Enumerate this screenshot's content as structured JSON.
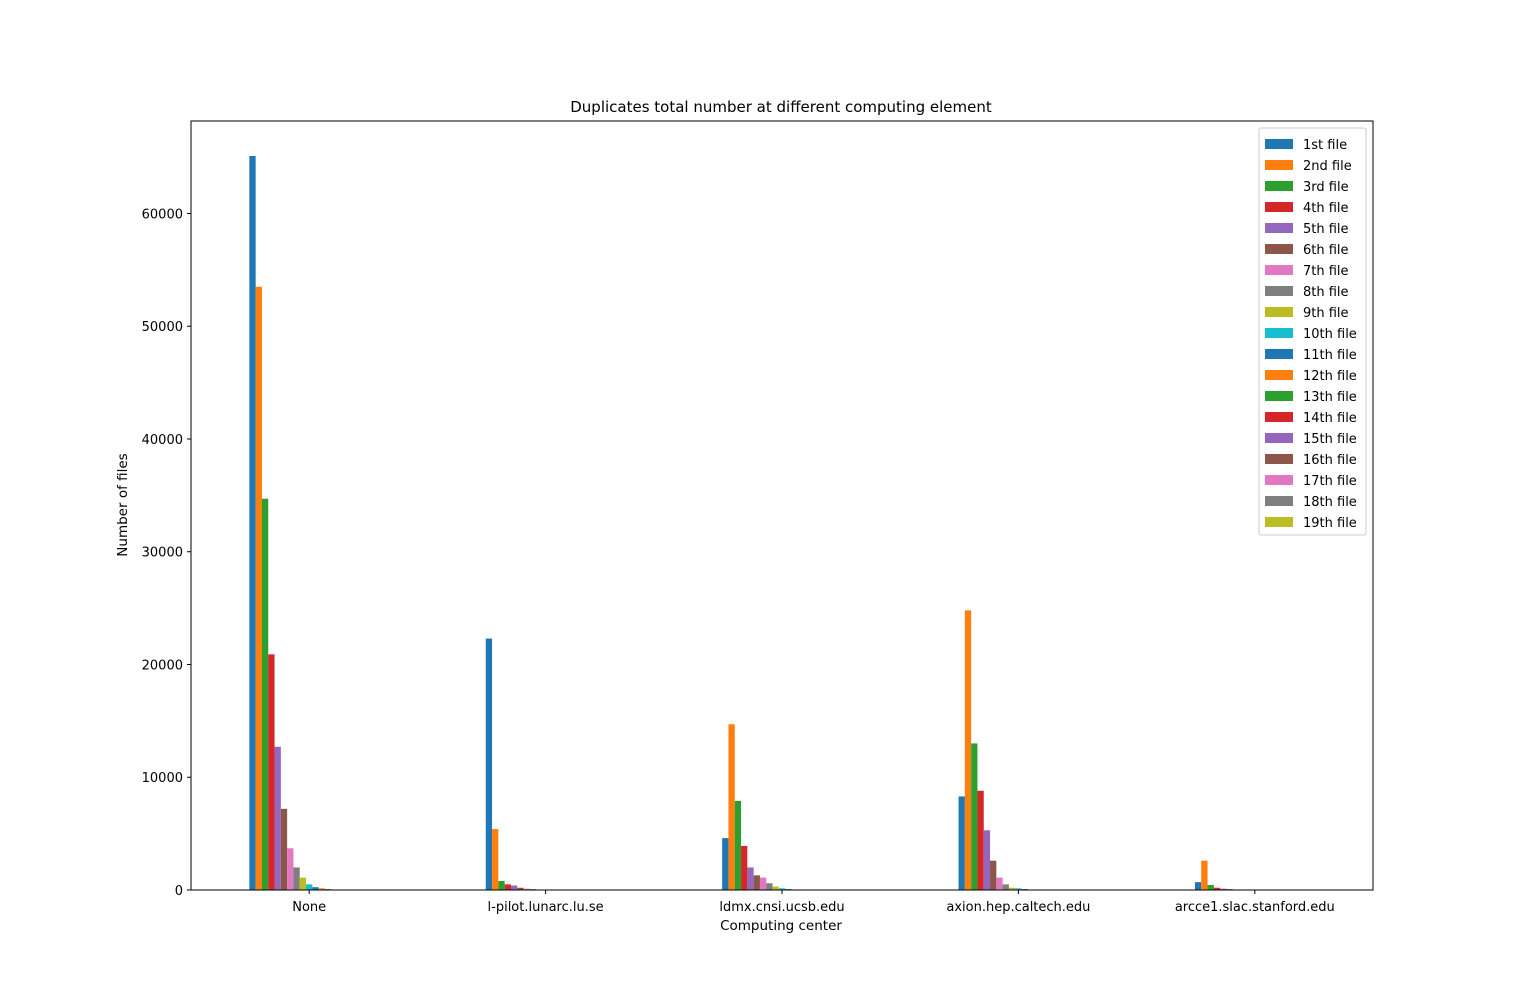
{
  "chart_data": {
    "type": "bar",
    "title": "Duplicates total number at different computing element",
    "xlabel": "Computing center",
    "ylabel": "Number of files",
    "ylim": [
      0,
      68200
    ],
    "yticks": [
      0,
      10000,
      20000,
      30000,
      40000,
      50000,
      60000
    ],
    "grid": false,
    "legend_position": "top-right",
    "categories": [
      "None",
      "l-pilot.lunarc.lu.se",
      "ldmx.cnsi.ucsb.edu",
      "axion.hep.caltech.edu",
      "arcce1.slac.stanford.edu"
    ],
    "series": [
      {
        "name": "1st file",
        "color": "#1f77b4",
        "values": [
          65100,
          22300,
          4600,
          8300,
          700
        ]
      },
      {
        "name": "2nd file",
        "color": "#ff7f0e",
        "values": [
          53500,
          5400,
          14700,
          24800,
          2600
        ]
      },
      {
        "name": "3rd file",
        "color": "#2ca02c",
        "values": [
          34700,
          800,
          7900,
          13000,
          450
        ]
      },
      {
        "name": "4th file",
        "color": "#d62728",
        "values": [
          20900,
          500,
          3900,
          8800,
          200
        ]
      },
      {
        "name": "5th file",
        "color": "#9467bd",
        "values": [
          12700,
          400,
          2000,
          5300,
          120
        ]
      },
      {
        "name": "6th file",
        "color": "#8c564b",
        "values": [
          7200,
          200,
          1300,
          2600,
          80
        ]
      },
      {
        "name": "7th file",
        "color": "#e377c2",
        "values": [
          3700,
          120,
          1100,
          1100,
          50
        ]
      },
      {
        "name": "8th file",
        "color": "#7f7f7f",
        "values": [
          2000,
          80,
          600,
          500,
          30
        ]
      },
      {
        "name": "9th file",
        "color": "#bcbd22",
        "values": [
          1100,
          50,
          300,
          200,
          20
        ]
      },
      {
        "name": "10th file",
        "color": "#17becf",
        "values": [
          500,
          30,
          150,
          150,
          10
        ]
      },
      {
        "name": "11th file",
        "color": "#1f77b4",
        "values": [
          250,
          20,
          80,
          80,
          5
        ]
      },
      {
        "name": "12th file",
        "color": "#ff7f0e",
        "values": [
          150,
          10,
          40,
          40,
          0
        ]
      },
      {
        "name": "13th file",
        "color": "#2ca02c",
        "values": [
          80,
          5,
          20,
          20,
          0
        ]
      },
      {
        "name": "14th file",
        "color": "#d62728",
        "values": [
          40,
          0,
          10,
          10,
          0
        ]
      },
      {
        "name": "15th file",
        "color": "#9467bd",
        "values": [
          20,
          0,
          5,
          5,
          0
        ]
      },
      {
        "name": "16th file",
        "color": "#8c564b",
        "values": [
          10,
          0,
          0,
          0,
          0
        ]
      },
      {
        "name": "17th file",
        "color": "#e377c2",
        "values": [
          5,
          0,
          0,
          0,
          0
        ]
      },
      {
        "name": "18th file",
        "color": "#7f7f7f",
        "values": [
          0,
          0,
          0,
          0,
          0
        ]
      },
      {
        "name": "19th file",
        "color": "#bcbd22",
        "values": [
          0,
          0,
          0,
          0,
          0
        ]
      }
    ]
  }
}
